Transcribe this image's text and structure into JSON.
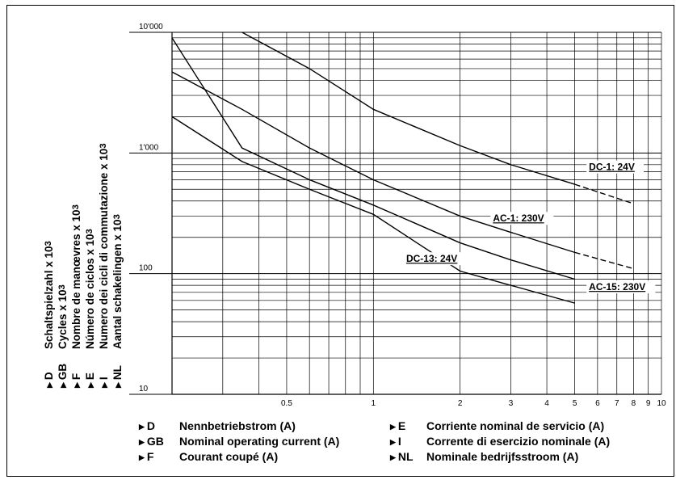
{
  "chart_data": {
    "type": "line",
    "x_scale": "log",
    "y_scale": "log",
    "xlim": [
      0.2,
      10
    ],
    "ylim": [
      10,
      10000
    ],
    "x_tick_labels": [
      "0.5",
      "1",
      "2",
      "3",
      "4",
      "5",
      "6",
      "7",
      "8",
      "9",
      "10"
    ],
    "x_tick_values": [
      0.5,
      1,
      2,
      3,
      4,
      5,
      6,
      7,
      8,
      9,
      10
    ],
    "y_tick_labels": [
      "10'000",
      "1'000",
      "100",
      "10"
    ],
    "y_tick_values": [
      10000,
      1000,
      100,
      10
    ],
    "grid": true,
    "series": [
      {
        "name": "DC-1: 24V",
        "x": [
          0.35,
          0.6,
          1,
          2,
          3,
          5
        ],
        "y": [
          10000,
          5000,
          2300,
          1150,
          800,
          550
        ],
        "dashed_x": [
          5,
          8
        ],
        "dashed_y": [
          550,
          380
        ]
      },
      {
        "name": "AC-1: 230V",
        "x": [
          0.2,
          0.35,
          0.6,
          1,
          2,
          3,
          5
        ],
        "y": [
          4700,
          2300,
          1100,
          600,
          300,
          220,
          150
        ],
        "dashed_x": [
          5,
          8
        ],
        "dashed_y": [
          150,
          110
        ]
      },
      {
        "name": "AC-15: 230V",
        "x": [
          0.2,
          0.35,
          0.6,
          1,
          2,
          3,
          5
        ],
        "y": [
          9000,
          1100,
          600,
          370,
          180,
          130,
          90
        ]
      },
      {
        "name": "DC-13: 24V",
        "x": [
          0.2,
          0.35,
          0.6,
          1,
          2,
          3,
          5
        ],
        "y": [
          2000,
          850,
          500,
          310,
          105,
          80,
          57
        ]
      }
    ],
    "ylabel_lines": [
      {
        "code": "D",
        "text": "Schaltspielzahl x 10",
        "sup": "3"
      },
      {
        "code": "GB",
        "text": "Cycles x 10",
        "sup": "3"
      },
      {
        "code": "F",
        "text": "Nombre de manœvres x 10",
        "sup": "3"
      },
      {
        "code": "E",
        "text": "Número de ciclos x 10",
        "sup": "3"
      },
      {
        "code": "I",
        "text": "Numero dei cicli di commutazione x 10",
        "sup": "3"
      },
      {
        "code": "NL",
        "text": "Aantal schakelingen x 10",
        "sup": "3"
      }
    ],
    "xlabel_lines": [
      {
        "code": "D",
        "text": "Nennbetriebstrom (A)"
      },
      {
        "code": "GB",
        "text": "Nominal operating current (A)"
      },
      {
        "code": "F",
        "text": "Courant coupé (A)"
      },
      {
        "code": "E",
        "text": "Corriente nominal de servicio (A)"
      },
      {
        "code": "I",
        "text": "Corrente di esercizio nominale (A)"
      },
      {
        "code": "NL",
        "text": "Nominale bedrijfsstroom (A)"
      }
    ]
  }
}
